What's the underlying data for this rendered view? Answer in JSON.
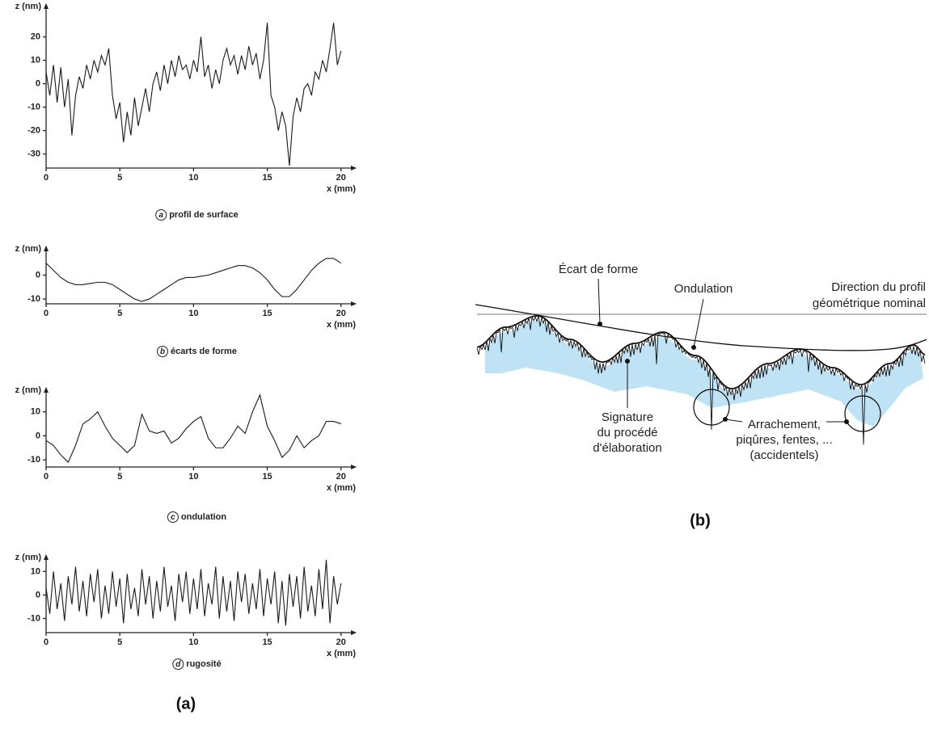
{
  "chart_data": [
    {
      "type": "line",
      "caption_letter": "a",
      "caption": "profil de surface",
      "y_label": "z (nm)",
      "x_label": "x (mm)",
      "x": [
        0,
        0.25,
        0.5,
        0.75,
        1,
        1.25,
        1.5,
        1.75,
        2,
        2.25,
        2.5,
        2.75,
        3,
        3.25,
        3.5,
        3.75,
        4,
        4.25,
        4.5,
        4.75,
        5,
        5.25,
        5.5,
        5.75,
        6,
        6.25,
        6.5,
        6.75,
        7,
        7.25,
        7.5,
        7.75,
        8,
        8.25,
        8.5,
        8.75,
        9,
        9.25,
        9.5,
        9.75,
        10,
        10.25,
        10.5,
        10.75,
        11,
        11.25,
        11.5,
        11.75,
        12,
        12.25,
        12.5,
        12.75,
        13,
        13.25,
        13.5,
        13.75,
        14,
        14.25,
        14.5,
        14.75,
        15,
        15.25,
        15.5,
        15.75,
        16,
        16.25,
        16.5,
        16.75,
        17,
        17.25,
        17.5,
        17.75,
        18,
        18.25,
        18.5,
        18.75,
        19,
        19.25,
        19.5,
        19.75,
        20
      ],
      "series": [
        {
          "color": "#1a1a1a",
          "values": [
            5,
            -5,
            8,
            -8,
            7,
            -10,
            2,
            -22,
            -5,
            3,
            -2,
            8,
            2,
            10,
            5,
            12,
            8,
            15,
            -5,
            -15,
            -8,
            -25,
            -12,
            -22,
            -6,
            -18,
            -10,
            -2,
            -12,
            0,
            5,
            -3,
            8,
            0,
            10,
            3,
            12,
            6,
            8,
            2,
            10,
            5,
            20,
            3,
            8,
            -2,
            6,
            0,
            10,
            15,
            8,
            12,
            4,
            12,
            6,
            16,
            8,
            13,
            2,
            10,
            26,
            -5,
            -10,
            -20,
            -12,
            -18,
            -35,
            -14,
            -6,
            -12,
            -2,
            0,
            -5,
            5,
            2,
            10,
            5,
            15,
            26,
            8,
            14
          ]
        }
      ],
      "xlim": [
        0,
        21
      ],
      "ylim": [
        -36,
        34
      ],
      "xticks": [
        0,
        5,
        10,
        15,
        20
      ],
      "yticks": [
        -30,
        -20,
        -10,
        0,
        10,
        20
      ]
    },
    {
      "type": "line",
      "caption_letter": "b",
      "caption": "écarts de forme",
      "y_label": "z (nm)",
      "x_label": "x (mm)",
      "x": [
        0,
        0.5,
        1,
        1.5,
        2,
        2.5,
        3,
        3.5,
        4,
        4.5,
        5,
        5.5,
        6,
        6.5,
        7,
        7.5,
        8,
        8.5,
        9,
        9.5,
        10,
        10.5,
        11,
        11.5,
        12,
        12.5,
        13,
        13.5,
        14,
        14.5,
        15,
        15.5,
        16,
        16.5,
        17,
        17.5,
        18,
        18.5,
        19,
        19.5,
        20
      ],
      "series": [
        {
          "color": "#1a1a1a",
          "values": [
            5,
            2,
            -1,
            -3,
            -4,
            -4,
            -3.5,
            -3,
            -3,
            -4,
            -6,
            -8,
            -10,
            -11,
            -10,
            -8,
            -6,
            -4,
            -2,
            -1,
            -1,
            -0.5,
            0,
            1,
            2,
            3,
            4,
            4,
            3,
            1,
            -2,
            -6,
            -9,
            -9,
            -6,
            -2,
            2,
            5,
            7,
            7,
            5
          ]
        }
      ],
      "xlim": [
        0,
        21
      ],
      "ylim": [
        -12,
        12
      ],
      "xticks": [
        0,
        5,
        10,
        15,
        20
      ],
      "yticks": [
        -10,
        0
      ]
    },
    {
      "type": "line",
      "caption_letter": "c",
      "caption": "ondulation",
      "y_label": "z (nm)",
      "x_label": "x (mm)",
      "x": [
        0,
        0.5,
        1,
        1.5,
        2,
        2.5,
        3,
        3.5,
        4,
        4.5,
        5,
        5.5,
        6,
        6.5,
        7,
        7.5,
        8,
        8.5,
        9,
        9.5,
        10,
        10.5,
        11,
        11.5,
        12,
        12.5,
        13,
        13.5,
        14,
        14.5,
        15,
        15.5,
        16,
        16.5,
        17,
        17.5,
        18,
        18.5,
        19,
        19.5,
        20
      ],
      "series": [
        {
          "color": "#1a1a1a",
          "values": [
            -2,
            -4,
            -8,
            -11,
            -4,
            5,
            7,
            10,
            4,
            -1,
            -4,
            -7,
            -4,
            9,
            2,
            1,
            2,
            -3,
            -1,
            3,
            6,
            8,
            -1,
            -5,
            -5,
            -1,
            4,
            1,
            10,
            17,
            4,
            -2,
            -9,
            -6,
            0,
            -5,
            -2,
            0,
            6,
            6,
            5
          ]
        }
      ],
      "xlim": [
        0,
        21
      ],
      "ylim": [
        -13,
        20
      ],
      "xticks": [
        0,
        5,
        10,
        15,
        20
      ],
      "yticks": [
        -10,
        0,
        10
      ]
    },
    {
      "type": "line",
      "caption_letter": "d",
      "caption": "rugosité",
      "y_label": "z (nm)",
      "x_label": "x (mm)",
      "x": [
        0,
        0.25,
        0.5,
        0.75,
        1,
        1.25,
        1.5,
        1.75,
        2,
        2.25,
        2.5,
        2.75,
        3,
        3.25,
        3.5,
        3.75,
        4,
        4.25,
        4.5,
        4.75,
        5,
        5.25,
        5.5,
        5.75,
        6,
        6.25,
        6.5,
        6.75,
        7,
        7.25,
        7.5,
        7.75,
        8,
        8.25,
        8.5,
        8.75,
        9,
        9.25,
        9.5,
        9.75,
        10,
        10.25,
        10.5,
        10.75,
        11,
        11.25,
        11.5,
        11.75,
        12,
        12.25,
        12.5,
        12.75,
        13,
        13.25,
        13.5,
        13.75,
        14,
        14.25,
        14.5,
        14.75,
        15,
        15.25,
        15.5,
        15.75,
        16,
        16.25,
        16.5,
        16.75,
        17,
        17.25,
        17.5,
        17.75,
        18,
        18.25,
        18.5,
        18.75,
        19,
        19.25,
        19.5,
        19.75,
        20
      ],
      "series": [
        {
          "color": "#1a1a1a",
          "values": [
            3,
            -8,
            10,
            -6,
            5,
            -11,
            8,
            -4,
            12,
            -7,
            6,
            -9,
            9,
            -3,
            11,
            -10,
            4,
            -8,
            10,
            -5,
            7,
            -12,
            9,
            -6,
            3,
            -9,
            11,
            -4,
            8,
            -10,
            6,
            -7,
            12,
            -5,
            4,
            -11,
            9,
            -3,
            10,
            -8,
            7,
            -6,
            11,
            -9,
            5,
            -4,
            12,
            -10,
            8,
            -7,
            6,
            -11,
            10,
            -3,
            9,
            -8,
            5,
            -6,
            11,
            -9,
            7,
            -4,
            10,
            -12,
            6,
            -13,
            9,
            -5,
            8,
            -10,
            12,
            -7,
            4,
            -9,
            11,
            -6,
            15,
            -12,
            8,
            -4,
            5
          ]
        }
      ],
      "xlim": [
        0,
        21
      ],
      "ylim": [
        -16,
        17
      ],
      "xticks": [
        0,
        5,
        10,
        15,
        20
      ],
      "yticks": [
        -10,
        0,
        10
      ]
    }
  ],
  "panel_labels": [
    "(a)",
    "(b)"
  ],
  "diagram": {
    "ecart_forme": "Écart de forme",
    "ondulation": "Ondulation",
    "direction": [
      "Direction du profil",
      "géométrique nominal"
    ],
    "signature": [
      "Signature",
      "du procédé",
      "d'élaboration"
    ],
    "accidents": [
      "Arrachement,",
      "piqûres, fentes, ...",
      "(accidentels)"
    ]
  }
}
